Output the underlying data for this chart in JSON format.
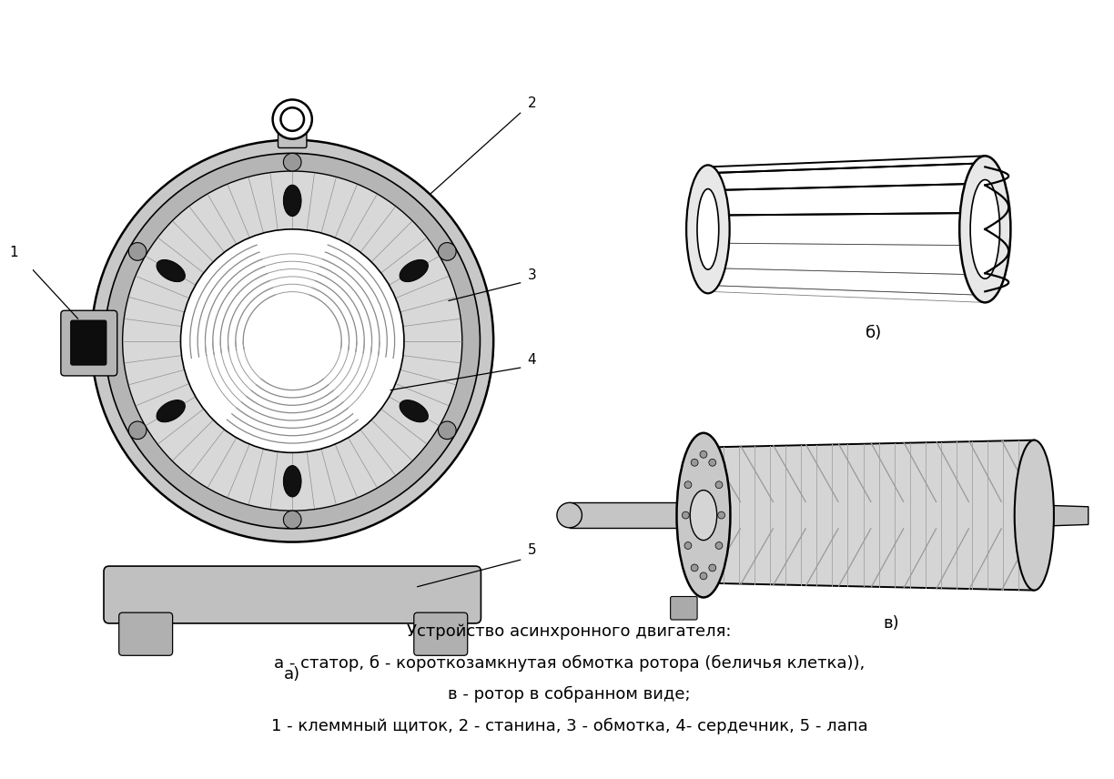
{
  "background_color": "#ffffff",
  "caption_line1": "Устройство асинхронного двигателя:",
  "caption_line2": "а - статор, б - короткозамкнутая обмотка ротора (беличья клетка)),",
  "caption_line3": "в - ротор в собранном виде;",
  "caption_line4": "1 - клеммный щиток, 2 - станина, 3 - обмотка, 4- сердечник, 5 - лапа",
  "label_a": "а)",
  "label_b": "б)",
  "label_v": "в)",
  "label_1": "1",
  "label_2": "2",
  "label_3": "3",
  "label_4": "4",
  "label_5": "5",
  "gray_light": "#d0d0d0",
  "gray_mid": "#a0a0a0",
  "gray_dark": "#606060",
  "black": "#000000",
  "white": "#ffffff",
  "caption_fontsize": 13,
  "label_fontsize": 12
}
